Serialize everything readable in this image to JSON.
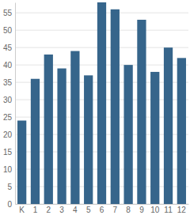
{
  "chart_data": {
    "type": "bar",
    "categories": [
      "K",
      "1",
      "2",
      "3",
      "4",
      "5",
      "6",
      "7",
      "8",
      "9",
      "10",
      "11",
      "12"
    ],
    "values": [
      24,
      36,
      43,
      39,
      44,
      37,
      58,
      56,
      40,
      53,
      38,
      45,
      42
    ],
    "color": "#36658b",
    "ylim": [
      0,
      58
    ],
    "yticks": [
      0,
      5,
      10,
      15,
      20,
      25,
      30,
      35,
      40,
      45,
      50,
      55
    ],
    "grid": true
  }
}
